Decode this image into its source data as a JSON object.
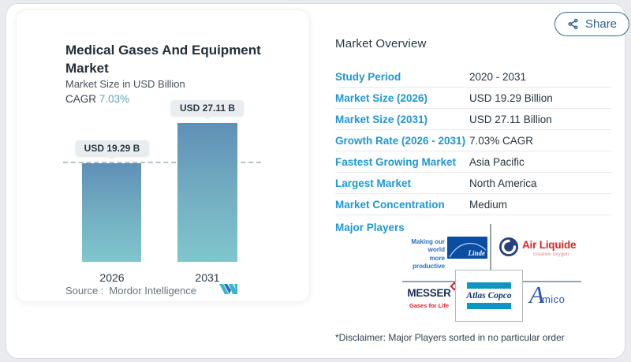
{
  "share": {
    "label": "Share"
  },
  "chart_panel": {
    "title": "Medical Gases And Equipment Market",
    "subtitle": "Market Size in USD Billion",
    "cagr_label": "CAGR",
    "cagr_value": "7.03%",
    "source_label": "Source :",
    "source_name": "Mordor Intelligence"
  },
  "chart_data": {
    "type": "bar",
    "title": "Medical Gases And Equipment Market",
    "ylabel": "Market Size in USD Billion",
    "categories": [
      "2026",
      "2031"
    ],
    "values": [
      19.29,
      27.11
    ],
    "bar_labels": [
      "USD 19.29 B",
      "USD 27.11 B"
    ],
    "unit": "USD Billion",
    "ylim": [
      0,
      29
    ],
    "reference_line": 19.29,
    "grid": false,
    "bar_gradient_top": "#5f90b6",
    "bar_gradient_bottom": "#80c6cd"
  },
  "overview": {
    "heading": "Market Overview",
    "rows": [
      {
        "label": "Study Period",
        "value": "2020 - 2031"
      },
      {
        "label": "Market Size (2026)",
        "value": "USD 19.29 Billion"
      },
      {
        "label": "Market Size (2031)",
        "value": "USD 27.11 Billion"
      },
      {
        "label": "Growth Rate (2026 - 2031)",
        "value": "7.03% CAGR"
      },
      {
        "label": "Fastest Growing Market",
        "value": "Asia Pacific"
      },
      {
        "label": "Largest Market",
        "value": "North America"
      },
      {
        "label": "Market Concentration",
        "value": "Medium"
      }
    ],
    "major_players_label": "Major Players",
    "disclaimer": "*Disclaimer: Major Players sorted in no particular order"
  },
  "players": {
    "linde": {
      "tagline_line1": "Making our world",
      "tagline_line2": "more productive",
      "name": "Linde"
    },
    "air_liquide": {
      "name": "Air Liquide",
      "tagline": "creative oxygen"
    },
    "messer": {
      "name": "MESSER",
      "tagline": "Gases for Life"
    },
    "atlas_copco": {
      "name": "Atlas Copco"
    },
    "amico": {
      "initial": "A",
      "rest": "mico"
    }
  },
  "colors": {
    "accent_blue": "#2097d4",
    "cagr_blue": "#5ea3c5",
    "share_navy": "#2d618d",
    "airliquide_red": "#d8252b",
    "linde_blue": "#0b4da1",
    "atlas_teal": "#1095c1",
    "messer_navy": "#1c3057",
    "amico_blue": "#2b58a3"
  }
}
